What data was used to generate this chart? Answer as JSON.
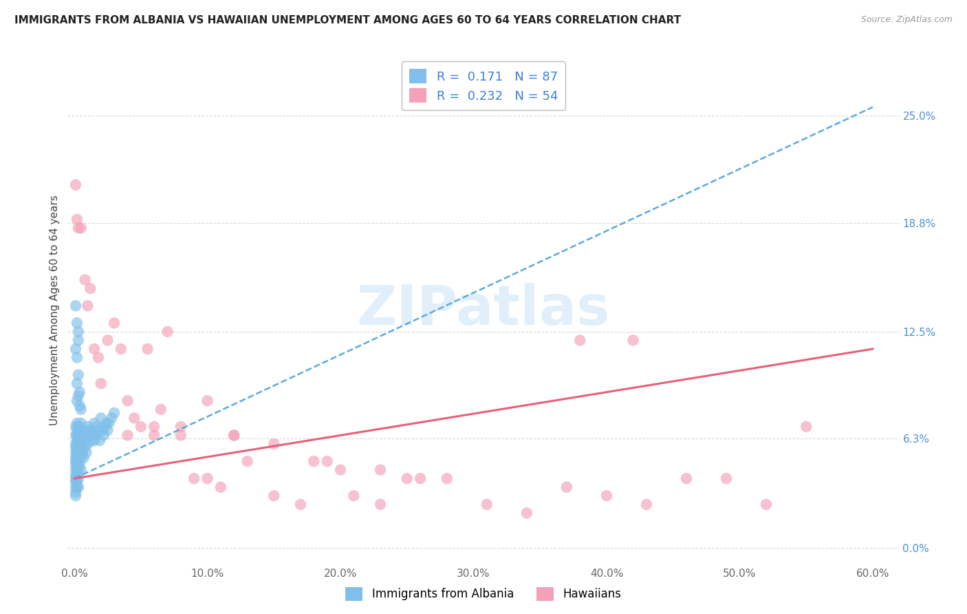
{
  "title": "IMMIGRANTS FROM ALBANIA VS HAWAIIAN UNEMPLOYMENT AMONG AGES 60 TO 64 YEARS CORRELATION CHART",
  "source": "Source: ZipAtlas.com",
  "ylabel": "Unemployment Among Ages 60 to 64 years",
  "xlabel_ticks": [
    "0.0%",
    "10.0%",
    "20.0%",
    "30.0%",
    "40.0%",
    "50.0%",
    "60.0%"
  ],
  "xlabel_vals": [
    0.0,
    0.1,
    0.2,
    0.3,
    0.4,
    0.5,
    0.6
  ],
  "ylabel_ticks": [
    "0.0%",
    "6.3%",
    "12.5%",
    "18.8%",
    "25.0%"
  ],
  "ylabel_vals": [
    0.0,
    0.063,
    0.125,
    0.188,
    0.25
  ],
  "xlim": [
    -0.005,
    0.62
  ],
  "ylim": [
    -0.01,
    0.285
  ],
  "legend_label1": "Immigrants from Albania",
  "legend_label2": "Hawaiians",
  "R1": "0.171",
  "N1": "87",
  "R2": "0.232",
  "N2": "54",
  "scatter1_x": [
    0.001,
    0.001,
    0.001,
    0.001,
    0.001,
    0.001,
    0.001,
    0.001,
    0.001,
    0.001,
    0.001,
    0.001,
    0.001,
    0.001,
    0.001,
    0.002,
    0.002,
    0.002,
    0.002,
    0.002,
    0.002,
    0.002,
    0.002,
    0.002,
    0.002,
    0.002,
    0.002,
    0.003,
    0.003,
    0.003,
    0.003,
    0.003,
    0.003,
    0.003,
    0.003,
    0.003,
    0.004,
    0.004,
    0.004,
    0.004,
    0.005,
    0.005,
    0.005,
    0.005,
    0.005,
    0.006,
    0.006,
    0.007,
    0.007,
    0.008,
    0.008,
    0.009,
    0.009,
    0.01,
    0.01,
    0.011,
    0.012,
    0.013,
    0.014,
    0.015,
    0.015,
    0.016,
    0.017,
    0.018,
    0.019,
    0.02,
    0.021,
    0.022,
    0.023,
    0.024,
    0.025,
    0.026,
    0.028,
    0.03,
    0.001,
    0.002,
    0.003,
    0.001,
    0.002,
    0.003,
    0.002,
    0.003,
    0.004,
    0.002,
    0.003,
    0.004,
    0.005
  ],
  "scatter1_y": [
    0.07,
    0.065,
    0.06,
    0.058,
    0.055,
    0.052,
    0.05,
    0.048,
    0.045,
    0.042,
    0.04,
    0.038,
    0.035,
    0.032,
    0.03,
    0.072,
    0.068,
    0.065,
    0.062,
    0.058,
    0.055,
    0.052,
    0.048,
    0.045,
    0.042,
    0.038,
    0.035,
    0.07,
    0.065,
    0.062,
    0.058,
    0.055,
    0.05,
    0.045,
    0.04,
    0.035,
    0.068,
    0.062,
    0.055,
    0.048,
    0.072,
    0.065,
    0.058,
    0.052,
    0.045,
    0.065,
    0.055,
    0.062,
    0.052,
    0.068,
    0.058,
    0.065,
    0.055,
    0.07,
    0.06,
    0.065,
    0.068,
    0.062,
    0.065,
    0.072,
    0.062,
    0.065,
    0.07,
    0.068,
    0.062,
    0.075,
    0.068,
    0.065,
    0.07,
    0.072,
    0.068,
    0.072,
    0.075,
    0.078,
    0.115,
    0.11,
    0.12,
    0.14,
    0.13,
    0.125,
    0.095,
    0.1,
    0.09,
    0.085,
    0.088,
    0.082,
    0.08
  ],
  "scatter2_x": [
    0.001,
    0.002,
    0.003,
    0.005,
    0.008,
    0.01,
    0.012,
    0.015,
    0.018,
    0.02,
    0.025,
    0.03,
    0.035,
    0.04,
    0.045,
    0.05,
    0.055,
    0.06,
    0.065,
    0.07,
    0.08,
    0.09,
    0.1,
    0.11,
    0.12,
    0.13,
    0.15,
    0.17,
    0.19,
    0.21,
    0.23,
    0.25,
    0.28,
    0.31,
    0.34,
    0.37,
    0.4,
    0.43,
    0.46,
    0.49,
    0.52,
    0.55,
    0.04,
    0.06,
    0.08,
    0.1,
    0.12,
    0.15,
    0.18,
    0.2,
    0.23,
    0.26,
    0.38,
    0.42
  ],
  "scatter2_y": [
    0.21,
    0.19,
    0.185,
    0.185,
    0.155,
    0.14,
    0.15,
    0.115,
    0.11,
    0.095,
    0.12,
    0.13,
    0.115,
    0.065,
    0.075,
    0.07,
    0.115,
    0.065,
    0.08,
    0.125,
    0.07,
    0.04,
    0.04,
    0.035,
    0.065,
    0.05,
    0.03,
    0.025,
    0.05,
    0.03,
    0.025,
    0.04,
    0.04,
    0.025,
    0.02,
    0.035,
    0.03,
    0.025,
    0.04,
    0.04,
    0.025,
    0.07,
    0.085,
    0.07,
    0.065,
    0.085,
    0.065,
    0.06,
    0.05,
    0.045,
    0.045,
    0.04,
    0.12,
    0.12
  ],
  "trendline1_x": [
    0.0,
    0.6
  ],
  "trendline1_y": [
    0.04,
    0.255
  ],
  "trendline2_x": [
    0.0,
    0.6
  ],
  "trendline2_y": [
    0.04,
    0.115
  ],
  "color1": "#7fbfea",
  "color2": "#f4a0b8",
  "trendline1_color": "#5aaae0",
  "trendline2_color": "#e8607a",
  "watermark_text": "ZIPatlas",
  "bg_color": "#ffffff",
  "grid_color": "#d8d8d8"
}
